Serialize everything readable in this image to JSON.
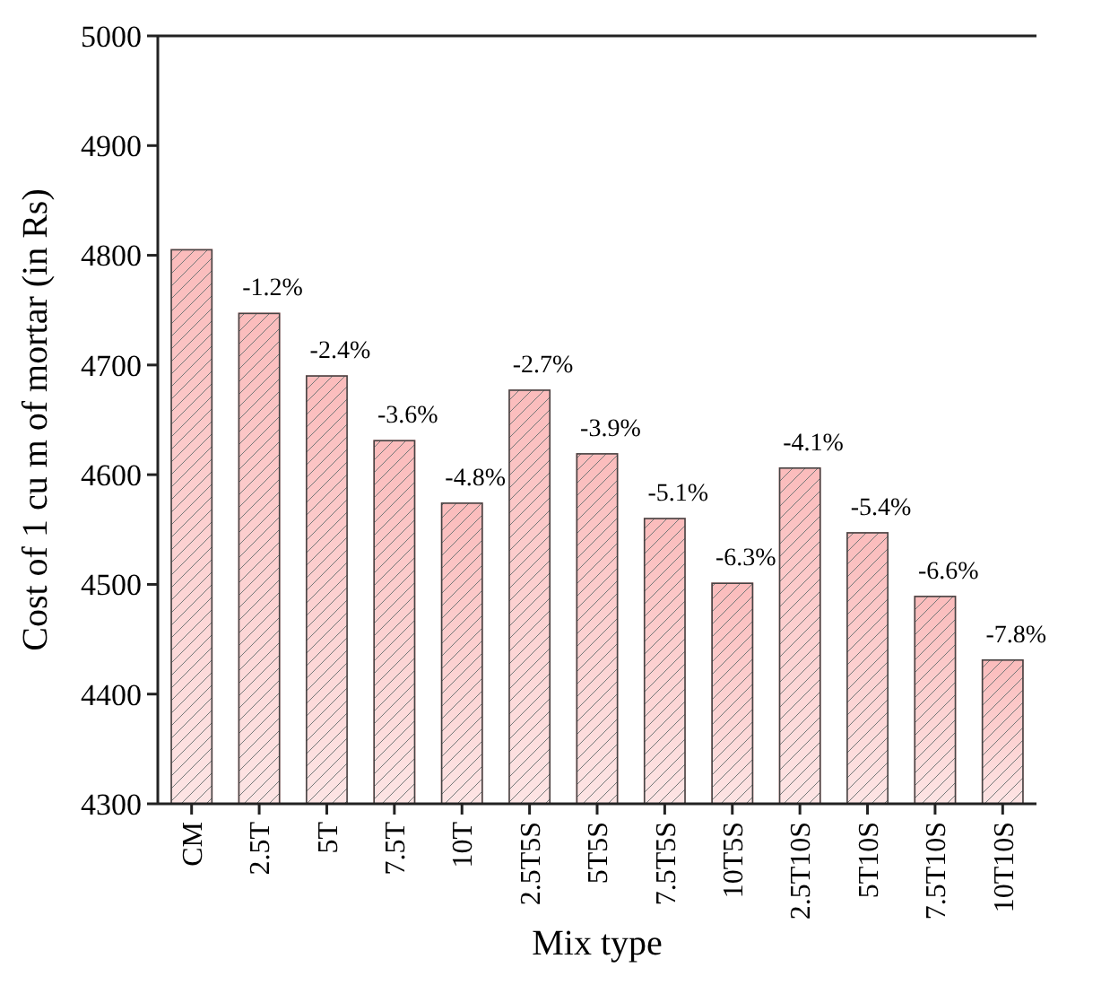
{
  "chart_data": {
    "type": "bar",
    "xlabel": "Mix type",
    "ylabel": "Cost of 1 cu m of mortar (in Rs)",
    "categories": [
      "CM",
      "2.5T",
      "5T",
      "7.5T",
      "10T",
      "2.5T5S",
      "5T5S",
      "7.5T5S",
      "10T5S",
      "2.5T10S",
      "5T10S",
      "7.5T10S",
      "10T10S"
    ],
    "values": [
      4805,
      4747,
      4690,
      4631,
      4574,
      4677,
      4619,
      4560,
      4501,
      4606,
      4547,
      4489,
      4431
    ],
    "annotations": [
      {
        "text": "-1.2%",
        "x": "2.5T",
        "y": 4747
      },
      {
        "text": "-2.4%",
        "x": "5T",
        "y": 4690
      },
      {
        "text": "-3.6%",
        "x": "7.5T",
        "y": 4631
      },
      {
        "text": "-4.8%",
        "x": "10T",
        "y": 4574
      },
      {
        "text": "-2.7%",
        "x": "2.5T5S",
        "y": 4677
      },
      {
        "text": "-3.9%",
        "x": "5T5S",
        "y": 4619
      },
      {
        "text": "-5.1%",
        "x": "7.5T5S",
        "y": 4560
      },
      {
        "text": "-6.3%",
        "x": "10T5S",
        "y": 4501
      },
      {
        "text": "-4.1%",
        "x": "2.5T10S",
        "y": 4606
      },
      {
        "text": "-5.4%",
        "x": "5T10S",
        "y": 4547
      },
      {
        "text": "-6.6%",
        "x": "7.5T10S",
        "y": 4489
      },
      {
        "text": "-7.8%",
        "x": "10T10S",
        "y": 4431
      }
    ],
    "color": "#fbbcbc",
    "ylim": [
      4300,
      5000
    ],
    "yticks": [
      4300,
      4400,
      4500,
      4600,
      4700,
      4800,
      4900,
      5000
    ],
    "grid": false
  }
}
